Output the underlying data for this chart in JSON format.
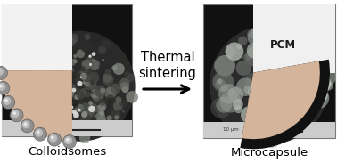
{
  "fig_width": 3.78,
  "fig_height": 1.83,
  "dpi": 100,
  "bg_color": "#ffffff",
  "tan_color": "#d4b49a",
  "sem_dark": "#1c1c1c",
  "sem_mid": "#555555",
  "sem_light": "#aaaaaa",
  "arrow_text_line1": "Thermal",
  "arrow_text_line2": "sintering",
  "label_left": "Colloidsomes",
  "label_right": "Microcapsule",
  "pcm_label": "PCM",
  "label_fontsize": 9.5,
  "pcm_fontsize": 8.5,
  "thermal_fontsize": 10.5,
  "sphere_base": "#909090",
  "sphere_highlight": "#cccccc",
  "sphere_edge": "#505050",
  "metadata_color": "#cccccc",
  "metadata_text_color": "#444444"
}
